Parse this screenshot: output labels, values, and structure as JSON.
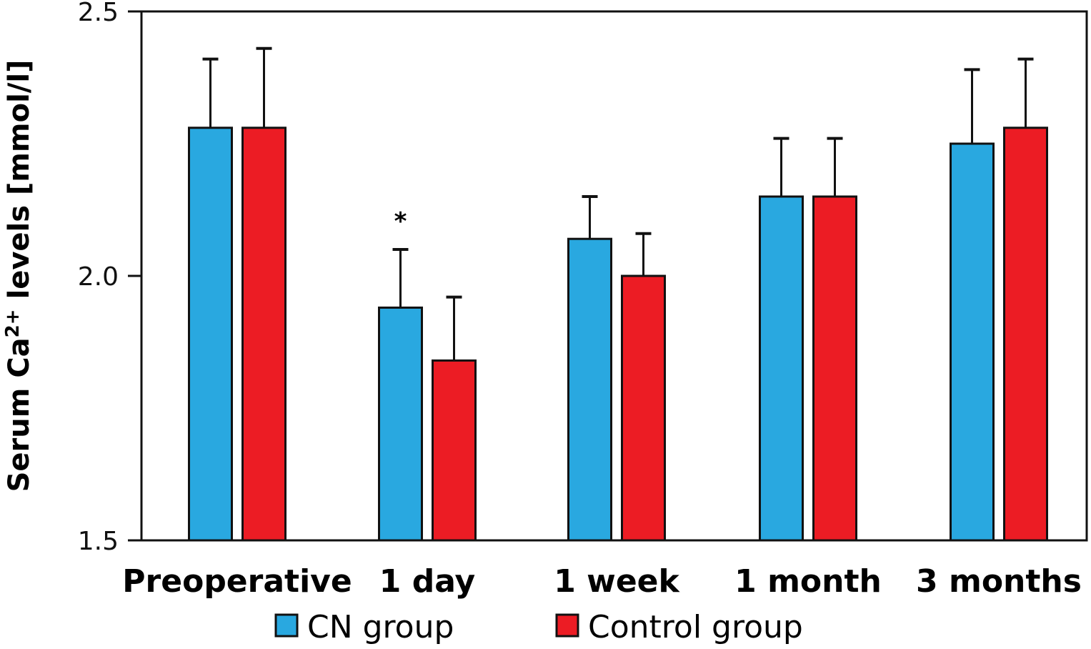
{
  "chart_data": {
    "type": "bar",
    "title": "",
    "xlabel": "",
    "ylabel": "Serum Ca2+ levels [mmol/l]",
    "ylabel_parts": {
      "before": "Serum Ca",
      "superscript": "2+",
      "after": " levels [mmol/l]"
    },
    "ylim": [
      1.5,
      2.5
    ],
    "yticks": [
      1.5,
      2.0,
      2.5
    ],
    "ytick_labels": [
      "1.5",
      "2.0",
      "2.5"
    ],
    "grid": false,
    "categories": [
      "Preoperative",
      "1 day",
      "1 week",
      "1 month",
      "3 months"
    ],
    "series": [
      {
        "name": "CN group",
        "color": "#29A8E0",
        "values": [
          2.28,
          1.94,
          2.07,
          2.15,
          2.25
        ],
        "error_upper": [
          2.41,
          2.05,
          2.15,
          2.26,
          2.39
        ]
      },
      {
        "name": "Control group",
        "color": "#EC1C24",
        "values": [
          2.28,
          1.84,
          2.0,
          2.15,
          2.28
        ],
        "error_upper": [
          2.43,
          1.96,
          2.08,
          2.26,
          2.41
        ]
      }
    ],
    "annotations": [
      {
        "text": "*",
        "category": "1 day",
        "series": "CN group"
      }
    ],
    "legend": {
      "position": "bottom",
      "entries": [
        "CN group",
        "Control group"
      ]
    }
  }
}
